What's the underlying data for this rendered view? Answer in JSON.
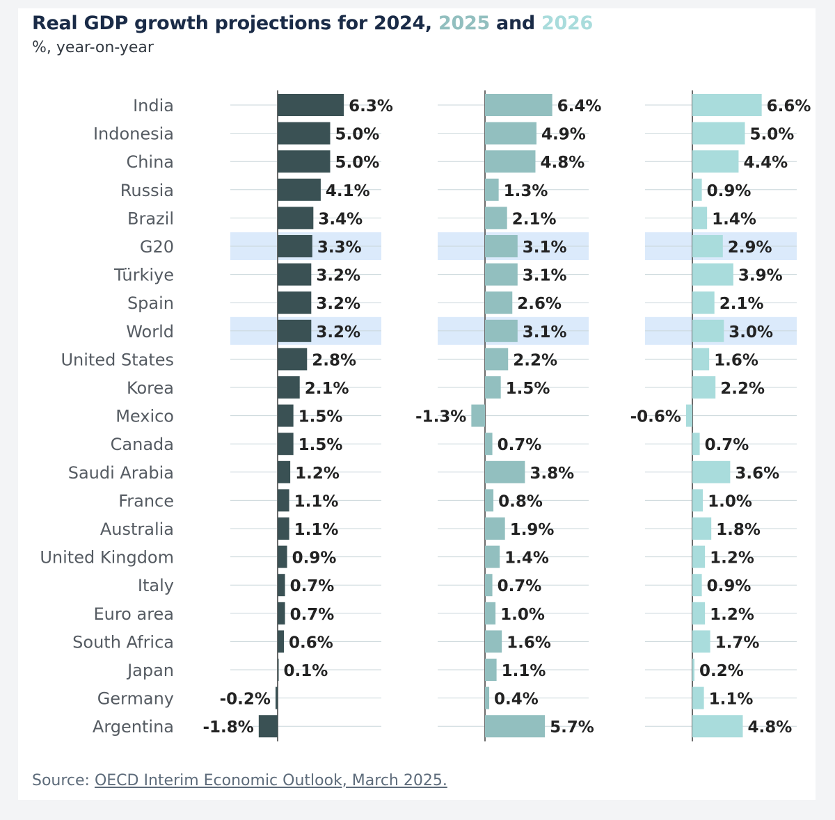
{
  "title": {
    "part1": "Real GDP growth projections for 2024, ",
    "year2025": "2025",
    "and": " and ",
    "year2026": "2026"
  },
  "subtitle": "%, year-on-year",
  "source": {
    "prefix": "Source: ",
    "link_text": "OECD Interim Economic Outlook, March 2025."
  },
  "colors": {
    "s2024": "#3a5154",
    "s2025": "#92bfbf",
    "s2026": "#a9dcdc",
    "highlight": "#dbeafb",
    "gridline": "#c9d6da",
    "axis": "#6b6b6b",
    "label_text": "#555b62",
    "value_text": "#222222"
  },
  "chart_data": {
    "type": "bar",
    "orientation": "horizontal",
    "title": "Real GDP growth projections for 2024, 2025 and 2026",
    "subtitle": "%, year-on-year",
    "unit": "%",
    "categories": [
      "India",
      "Indonesia",
      "China",
      "Russia",
      "Brazil",
      "G20",
      "Türkiye",
      "Spain",
      "World",
      "United States",
      "Korea",
      "Mexico",
      "Canada",
      "Saudi Arabia",
      "France",
      "Australia",
      "United Kingdom",
      "Italy",
      "Euro area",
      "South Africa",
      "Japan",
      "Germany",
      "Argentina"
    ],
    "highlighted_categories": [
      "G20",
      "World"
    ],
    "series": [
      {
        "name": "2024",
        "labels": [
          "6.3%",
          "5.0%",
          "5.0%",
          "4.1%",
          "3.4%",
          "3.3%",
          "3.2%",
          "3.2%",
          "3.2%",
          "2.8%",
          "2.1%",
          "1.5%",
          "1.5%",
          "1.2%",
          "1.1%",
          "1.1%",
          "0.9%",
          "0.7%",
          "0.7%",
          "0.6%",
          "0.1%",
          "-0.2%",
          "-1.8%"
        ],
        "values": [
          6.3,
          5.0,
          5.0,
          4.1,
          3.4,
          3.3,
          3.2,
          3.2,
          3.2,
          2.8,
          2.1,
          1.5,
          1.5,
          1.2,
          1.1,
          1.1,
          0.9,
          0.7,
          0.7,
          0.6,
          0.1,
          -0.2,
          -1.8
        ]
      },
      {
        "name": "2025",
        "labels": [
          "6.4%",
          "4.9%",
          "4.8%",
          "1.3%",
          "2.1%",
          "3.1%",
          "3.1%",
          "2.6%",
          "3.1%",
          "2.2%",
          "1.5%",
          "-1.3%",
          "0.7%",
          "3.8%",
          "0.8%",
          "1.9%",
          "1.4%",
          "0.7%",
          "1.0%",
          "1.6%",
          "1.1%",
          "0.4%",
          "5.7%"
        ],
        "values": [
          6.4,
          4.9,
          4.8,
          1.3,
          2.1,
          3.1,
          3.1,
          2.6,
          3.1,
          2.2,
          1.5,
          -1.3,
          0.7,
          3.8,
          0.8,
          1.9,
          1.4,
          0.7,
          1.0,
          1.6,
          1.1,
          0.4,
          5.7
        ]
      },
      {
        "name": "2026",
        "labels": [
          "6.6%",
          "5.0%",
          "4.4%",
          "0.9%",
          "1.4%",
          "2.9%",
          "3.9%",
          "2.1%",
          "3.0%",
          "1.6%",
          "2.2%",
          "-0.6%",
          "0.7%",
          "3.6%",
          "1.0%",
          "1.8%",
          "1.2%",
          "0.9%",
          "1.2%",
          "1.7%",
          "0.2%",
          "1.1%",
          "4.8%"
        ],
        "values": [
          6.6,
          5.0,
          4.4,
          0.9,
          1.4,
          2.9,
          3.9,
          2.1,
          3.0,
          1.6,
          2.2,
          -0.6,
          0.7,
          3.6,
          1.0,
          1.8,
          1.2,
          0.9,
          1.2,
          1.7,
          0.2,
          1.1,
          4.8
        ]
      }
    ],
    "xlim": [
      -4,
      9
    ],
    "grid": false,
    "legend": "in title (colored years)"
  }
}
